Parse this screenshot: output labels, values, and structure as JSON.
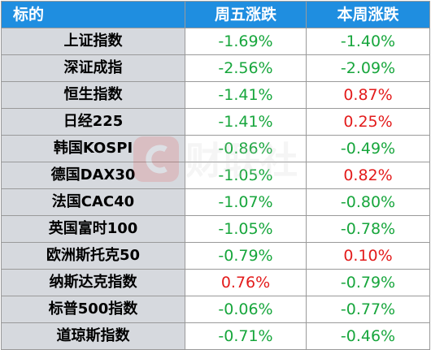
{
  "header": {
    "col_name": "标的",
    "col_week_fri": "周五涨跌",
    "col_week": "本周涨跌"
  },
  "rows": [
    {
      "name": "上证指数",
      "fri": "-1.69%",
      "fri_dir": "down",
      "week": "-1.40%",
      "week_dir": "down"
    },
    {
      "name": "深证成指",
      "fri": "-2.56%",
      "fri_dir": "down",
      "week": "-2.09%",
      "week_dir": "down"
    },
    {
      "name": "恒生指数",
      "fri": "-1.41%",
      "fri_dir": "down",
      "week": "0.87%",
      "week_dir": "up"
    },
    {
      "name": "日经225",
      "fri": "-1.41%",
      "fri_dir": "down",
      "week": "0.25%",
      "week_dir": "up"
    },
    {
      "name": "韩国KOSPI",
      "fri": "-0.86%",
      "fri_dir": "down",
      "week": "-0.49%",
      "week_dir": "down"
    },
    {
      "name": "德国DAX30",
      "fri": "-1.05%",
      "fri_dir": "down",
      "week": "0.82%",
      "week_dir": "up"
    },
    {
      "name": "法国CAC40",
      "fri": "-1.07%",
      "fri_dir": "down",
      "week": "-0.80%",
      "week_dir": "down"
    },
    {
      "name": "英国富时100",
      "fri": "-1.05%",
      "fri_dir": "down",
      "week": "-0.78%",
      "week_dir": "down"
    },
    {
      "name": "欧洲斯托克50",
      "fri": "-0.79%",
      "fri_dir": "down",
      "week": "0.10%",
      "week_dir": "up"
    },
    {
      "name": "纳斯达克指数",
      "fri": "0.76%",
      "fri_dir": "up",
      "week": "-0.79%",
      "week_dir": "down"
    },
    {
      "name": "标普500指数",
      "fri": "-0.06%",
      "fri_dir": "down",
      "week": "-0.77%",
      "week_dir": "down"
    },
    {
      "name": "道琼斯指数",
      "fri": "-0.71%",
      "fri_dir": "down",
      "week": "-0.46%",
      "week_dir": "down"
    }
  ],
  "watermark": {
    "text": "财联社",
    "icon": "cls-logo-icon"
  },
  "colors": {
    "header_bg": "#1f8ee0",
    "name_bg": "#d6d9de",
    "down": "#17a63c",
    "up": "#e31b1b",
    "border": "#9a9a9a"
  }
}
